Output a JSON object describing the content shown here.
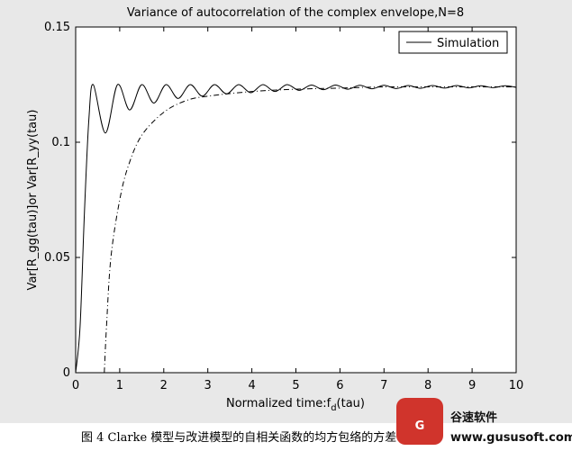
{
  "chart_data": {
    "type": "line",
    "title": "Variance of autocorrelation of the complex envelope,N=8",
    "xlabel": [
      "Normalized time:f",
      "d",
      "(tau)"
    ],
    "ylabel": "Var[R_gg(tau)]or Var[R_yy(tau)",
    "xlim": [
      0,
      10
    ],
    "ylim": [
      0,
      0.15
    ],
    "xticks": [
      0,
      1,
      2,
      3,
      4,
      5,
      6,
      7,
      8,
      9,
      10
    ],
    "yticks": [
      0,
      0.05,
      0.1,
      0.15
    ],
    "legend": "upper right",
    "series": [
      {
        "name": "Simulation",
        "color": "#000000",
        "dash": "solid",
        "x": [
          0,
          0.1,
          0.2,
          0.3,
          0.4,
          0.675,
          0.95,
          1.225,
          1.5,
          1.775,
          2.05,
          2.325,
          2.6,
          2.875,
          3.15,
          3.425,
          3.7,
          3.975,
          4.25,
          4.525,
          4.8,
          5.075,
          5.35,
          5.625,
          5.9,
          6.175,
          6.45,
          6.725,
          7.0,
          7.275,
          7.55,
          7.825,
          8.1,
          8.375,
          8.65,
          8.925,
          9.2,
          9.475,
          9.75,
          10
        ],
        "values": [
          0,
          0.02,
          0.07,
          0.11,
          0.125,
          0.104,
          0.125,
          0.114,
          0.125,
          0.117,
          0.125,
          0.119,
          0.125,
          0.12,
          0.125,
          0.121,
          0.125,
          0.1215,
          0.125,
          0.122,
          0.125,
          0.1225,
          0.1248,
          0.1228,
          0.1248,
          0.123,
          0.1247,
          0.1232,
          0.1247,
          0.1233,
          0.1246,
          0.1234,
          0.1246,
          0.1235,
          0.1246,
          0.1236,
          0.1245,
          0.1237,
          0.1245,
          0.1238
        ]
      },
      {
        "color": "#000000",
        "dash": "dashdot",
        "x": [
          0.65,
          0.7,
          0.8,
          1.0,
          1.2,
          1.5,
          2.0,
          2.5,
          3,
          4,
          5,
          6,
          7,
          8,
          9,
          10
        ],
        "values": [
          0,
          0.02,
          0.05,
          0.075,
          0.09,
          0.103,
          0.113,
          0.118,
          0.12,
          0.122,
          0.123,
          0.1235,
          0.124,
          0.124,
          0.124,
          0.124
        ]
      }
    ]
  },
  "caption": "图 4   Clarke 模型与改进模型的自相关函数的均方包络的方差",
  "watermark": {
    "name": "谷速软件",
    "url": "www.gususoft.com"
  }
}
